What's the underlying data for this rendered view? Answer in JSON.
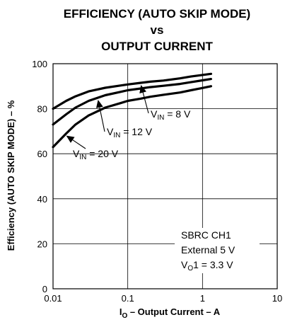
{
  "chart_data": {
    "type": "line",
    "title_lines": [
      "EFFICIENCY (AUTO SKIP MODE)",
      "vs",
      "OUTPUT CURRENT"
    ],
    "xlabel": {
      "prefix": "I",
      "sub": "O",
      "rest": " – Output Current – A"
    },
    "ylabel": "Efficiency (AUTO SKIP MODE) – %",
    "x_scale": "log",
    "xlim": [
      0.01,
      10
    ],
    "ylim": [
      0,
      100
    ],
    "x_ticks": [
      {
        "value": 0.01,
        "label": "0.01"
      },
      {
        "value": 0.1,
        "label": "0.1"
      },
      {
        "value": 1,
        "label": "1"
      },
      {
        "value": 10,
        "label": "10"
      }
    ],
    "y_ticks": [
      {
        "value": 0,
        "label": "0"
      },
      {
        "value": 20,
        "label": "20"
      },
      {
        "value": 40,
        "label": "40"
      },
      {
        "value": 60,
        "label": "60"
      },
      {
        "value": 80,
        "label": "80"
      },
      {
        "value": 100,
        "label": "100"
      }
    ],
    "grid": true,
    "series": [
      {
        "label": {
          "prefix": "V",
          "sub": "IN",
          "rest": " = 8 V"
        },
        "x": [
          0.01,
          0.015,
          0.02,
          0.03,
          0.05,
          0.08,
          0.1,
          0.15,
          0.2,
          0.3,
          0.5,
          0.7,
          1.0,
          1.3
        ],
        "y": [
          80,
          83.5,
          85.5,
          87.7,
          89.3,
          90.3,
          90.8,
          91.5,
          92,
          92.5,
          93.5,
          94.3,
          95,
          95.5
        ]
      },
      {
        "label": {
          "prefix": "V",
          "sub": "IN",
          "rest": " = 12 V"
        },
        "x": [
          0.01,
          0.015,
          0.02,
          0.03,
          0.05,
          0.08,
          0.1,
          0.15,
          0.2,
          0.3,
          0.5,
          0.7,
          1.0,
          1.3
        ],
        "y": [
          73,
          77.5,
          80.5,
          83.5,
          86,
          87.5,
          88.2,
          89,
          89.6,
          90.2,
          91,
          91.8,
          92.6,
          93.2
        ]
      },
      {
        "label": {
          "prefix": "V",
          "sub": "IN",
          "rest": " = 20 V"
        },
        "x": [
          0.01,
          0.015,
          0.02,
          0.03,
          0.05,
          0.08,
          0.1,
          0.15,
          0.2,
          0.3,
          0.5,
          0.7,
          1.0,
          1.3
        ],
        "y": [
          63,
          69,
          73,
          77,
          80.5,
          82.5,
          83.5,
          84.5,
          85.3,
          86.2,
          87.2,
          88.2,
          89.2,
          90
        ]
      }
    ],
    "conditions": {
      "line1": "SBRC CH1",
      "line2": "External 5 V",
      "line3": {
        "prefix": "V",
        "sub": "O",
        "rest": "1 = 3.3 V"
      }
    }
  }
}
